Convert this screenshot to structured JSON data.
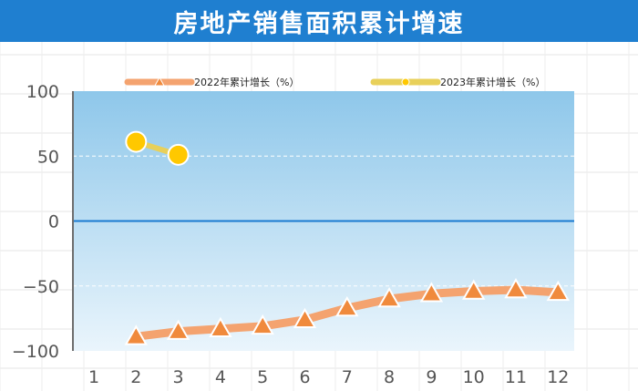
{
  "title": "房地产销售面积累计增速",
  "chart_data": {
    "type": "line",
    "title": "房地产销售面积累计增速",
    "x": [
      1,
      2,
      3,
      4,
      5,
      6,
      7,
      8,
      9,
      10,
      11,
      12
    ],
    "ylim": [
      -100,
      100
    ],
    "yticks": [
      100,
      50,
      0,
      -50,
      -100
    ],
    "grid": true,
    "legend_position": "top",
    "series": [
      {
        "name": "2022年累计增长（%）",
        "color": "#f08a3c",
        "line_color": "#f4a36f",
        "marker": "triangle",
        "values": [
          null,
          -89,
          -85,
          -83,
          -81,
          -76,
          -67,
          -60,
          -56,
          -54,
          -53,
          -55
        ]
      },
      {
        "name": "2023年累计增长（%）",
        "color": "#ffc800",
        "line_color": "#e8d05a",
        "marker": "circle",
        "values": [
          null,
          61,
          51,
          null,
          null,
          null,
          null,
          null,
          null,
          null,
          null,
          null
        ]
      }
    ]
  }
}
